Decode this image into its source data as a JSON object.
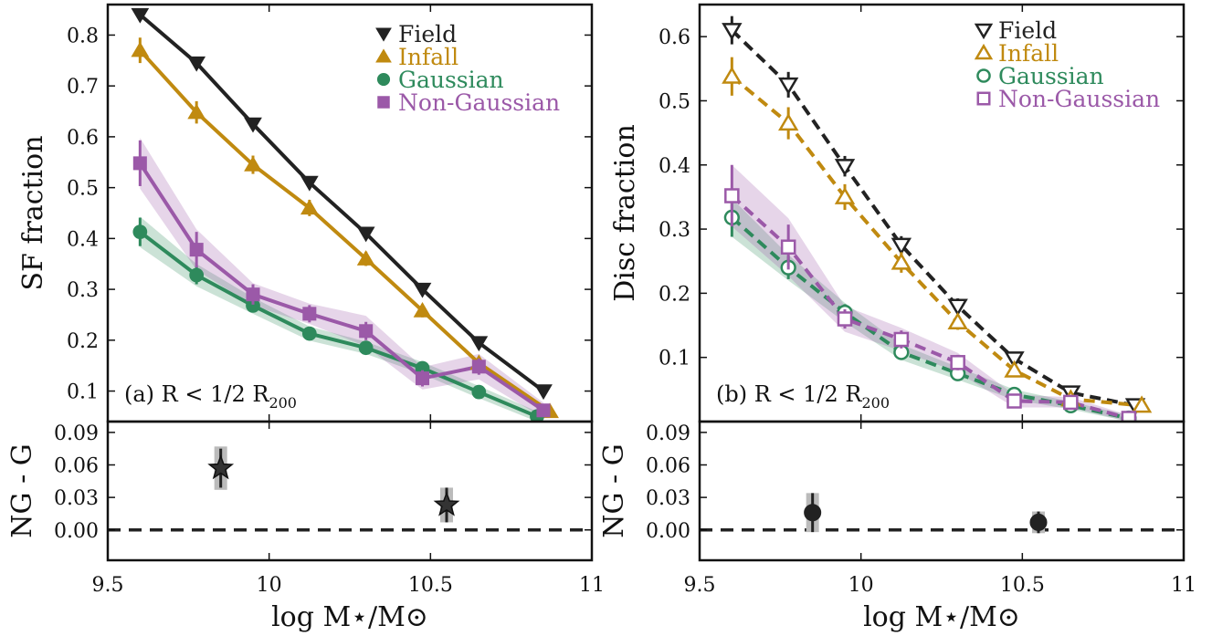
{
  "shared": {
    "xlabel": "log M⋆/M⊙",
    "xlim": [
      9.5,
      11
    ],
    "xticks": [
      9.5,
      10,
      10.5,
      11
    ],
    "xtick_labels": [
      "9.5",
      "10",
      "10.5",
      "11"
    ]
  },
  "chart_data": [
    {
      "id": "a-top",
      "type": "line",
      "ylabel": "SF fraction",
      "ylim": [
        0.04,
        0.86
      ],
      "yticks": [
        0.1,
        0.2,
        0.3,
        0.4,
        0.5,
        0.6,
        0.7,
        0.8
      ],
      "ytick_labels": [
        "0.1",
        "0.2",
        "0.3",
        "0.4",
        "0.5",
        "0.6",
        "0.7",
        "0.8"
      ],
      "annotation": {
        "prefix": "(a)  R < 1/2 R",
        "sub": "200"
      },
      "legend_position": "top-right",
      "series": [
        {
          "name": "Field",
          "color": "#222222",
          "marker": "triangle-down",
          "filled": true,
          "dashed": false,
          "x": [
            9.6,
            9.775,
            9.95,
            10.125,
            10.3,
            10.475,
            10.65,
            10.85
          ],
          "y": [
            0.84,
            0.745,
            0.625,
            0.51,
            0.41,
            0.3,
            0.195,
            0.1
          ],
          "err": [
            0.012,
            0.012,
            0.012,
            0.012,
            0.012,
            0.012,
            0.012,
            0.012
          ]
        },
        {
          "name": "Infall",
          "color": "#C08A10",
          "marker": "triangle-up",
          "filled": true,
          "dashed": false,
          "x": [
            9.6,
            9.775,
            9.95,
            10.125,
            10.3,
            10.475,
            10.65,
            10.87
          ],
          "y": [
            0.77,
            0.648,
            0.545,
            0.46,
            0.36,
            0.258,
            0.155,
            0.06
          ],
          "err": [
            0.025,
            0.022,
            0.018,
            0.016,
            0.014,
            0.013,
            0.011,
            0.01
          ]
        },
        {
          "name": "Gaussian",
          "color": "#2E8A5C",
          "marker": "circle",
          "filled": true,
          "dashed": false,
          "x": [
            9.6,
            9.775,
            9.95,
            10.125,
            10.3,
            10.475,
            10.65,
            10.83
          ],
          "y": [
            0.413,
            0.328,
            0.268,
            0.213,
            0.185,
            0.145,
            0.098,
            0.05
          ],
          "err": [
            0.028,
            0.018,
            0.013,
            0.011,
            0.01,
            0.01,
            0.009,
            0.008
          ],
          "band": [
            0.03,
            0.022,
            0.016,
            0.014,
            0.012,
            0.012,
            0.012,
            0.01
          ]
        },
        {
          "name": "Non-Gaussian",
          "color": "#9B59A8",
          "marker": "square",
          "filled": true,
          "dashed": false,
          "x": [
            9.6,
            9.775,
            9.95,
            10.125,
            10.3,
            10.475,
            10.65,
            10.85
          ],
          "y": [
            0.548,
            0.378,
            0.29,
            0.252,
            0.218,
            0.125,
            0.148,
            0.062
          ],
          "err": [
            0.045,
            0.035,
            0.02,
            0.017,
            0.018,
            0.016,
            0.016,
            0.012
          ],
          "band": [
            0.05,
            0.04,
            0.022,
            0.02,
            0.03,
            0.022,
            0.025,
            0.015
          ]
        }
      ]
    },
    {
      "id": "a-bottom",
      "type": "scatter",
      "ylabel": "NG - G",
      "ylim": [
        -0.028,
        0.1
      ],
      "yticks": [
        0.0,
        0.03,
        0.06,
        0.09
      ],
      "ytick_labels": [
        "0.00",
        "0.03",
        "0.06",
        "0.09"
      ],
      "zero_line": true,
      "series": [
        {
          "color": "#222222",
          "marker": "star",
          "x": [
            9.85,
            10.55
          ],
          "y": [
            0.057,
            0.023
          ],
          "err": [
            0.018,
            0.016
          ],
          "band": [
            0.02,
            0.016
          ]
        }
      ]
    },
    {
      "id": "b-top",
      "type": "line",
      "ylabel": "Disc fraction",
      "ylim": [
        0.0,
        0.65
      ],
      "yticks": [
        0.1,
        0.2,
        0.3,
        0.4,
        0.5,
        0.6
      ],
      "ytick_labels": [
        "0.1",
        "0.2",
        "0.3",
        "0.4",
        "0.5",
        "0.6"
      ],
      "annotation": {
        "prefix": "(b)  R < 1/2 R",
        "sub": "200"
      },
      "legend_position": "top-right",
      "series": [
        {
          "name": "Field",
          "color": "#222222",
          "marker": "triangle-down",
          "filled": false,
          "dashed": true,
          "x": [
            9.6,
            9.775,
            9.95,
            10.125,
            10.3,
            10.475,
            10.65,
            10.85
          ],
          "y": [
            0.61,
            0.525,
            0.398,
            0.275,
            0.18,
            0.098,
            0.045,
            0.025
          ],
          "err": [
            0.022,
            0.02,
            0.016,
            0.014,
            0.012,
            0.01,
            0.008,
            0.006
          ]
        },
        {
          "name": "Infall",
          "color": "#C08A10",
          "marker": "triangle-up",
          "filled": false,
          "dashed": true,
          "x": [
            9.6,
            9.775,
            9.95,
            10.125,
            10.3,
            10.475,
            10.65,
            10.87
          ],
          "y": [
            0.538,
            0.465,
            0.35,
            0.248,
            0.155,
            0.08,
            0.035,
            0.025
          ],
          "err": [
            0.03,
            0.025,
            0.02,
            0.016,
            0.012,
            0.01,
            0.008,
            0.006
          ]
        },
        {
          "name": "Gaussian",
          "color": "#2E8A5C",
          "marker": "circle",
          "filled": false,
          "dashed": true,
          "x": [
            9.6,
            9.775,
            9.95,
            10.125,
            10.3,
            10.475,
            10.65,
            10.83
          ],
          "y": [
            0.318,
            0.24,
            0.17,
            0.108,
            0.075,
            0.042,
            0.025,
            0.005
          ],
          "err": [
            0.03,
            0.018,
            0.013,
            0.01,
            0.008,
            0.006,
            0.005,
            0.004
          ],
          "band": [
            0.03,
            0.02,
            0.015,
            0.012,
            0.01,
            0.008,
            0.006,
            0.005
          ]
        },
        {
          "name": "Non-Gaussian",
          "color": "#9B59A8",
          "marker": "square",
          "filled": false,
          "dashed": true,
          "x": [
            9.6,
            9.775,
            9.95,
            10.125,
            10.3,
            10.475,
            10.65,
            10.83
          ],
          "y": [
            0.352,
            0.272,
            0.16,
            0.128,
            0.092,
            0.032,
            0.03,
            0.005
          ],
          "err": [
            0.048,
            0.035,
            0.015,
            0.014,
            0.012,
            0.008,
            0.006,
            0.004
          ],
          "band": [
            0.048,
            0.045,
            0.02,
            0.018,
            0.015,
            0.01,
            0.008,
            0.005
          ]
        }
      ]
    },
    {
      "id": "b-bottom",
      "type": "scatter",
      "ylabel": "NG - G",
      "ylim": [
        -0.028,
        0.1
      ],
      "yticks": [
        0.0,
        0.03,
        0.06,
        0.09
      ],
      "ytick_labels": [
        "0.00",
        "0.03",
        "0.06",
        "0.09"
      ],
      "zero_line": true,
      "series": [
        {
          "color": "#222222",
          "marker": "circle",
          "x": [
            9.85,
            10.55
          ],
          "y": [
            0.016,
            0.007
          ],
          "err": [
            0.018,
            0.01
          ],
          "band": [
            0.018,
            0.01
          ]
        }
      ]
    }
  ]
}
